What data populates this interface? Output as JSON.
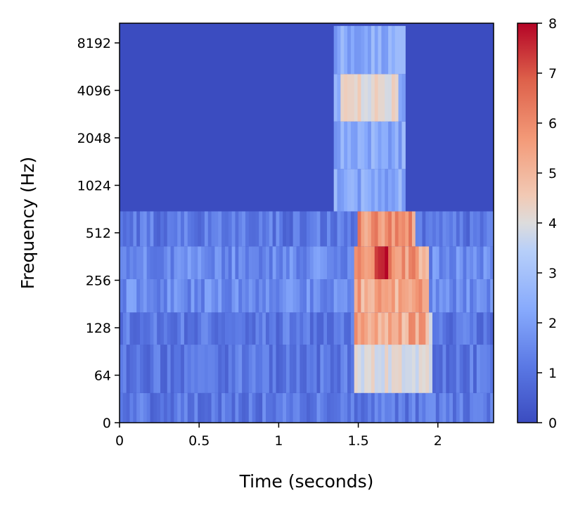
{
  "chart_data": {
    "type": "heatmap",
    "title": "",
    "xlabel": "Time (seconds)",
    "ylabel": "Frequency (Hz)",
    "xlim": [
      0,
      2.35
    ],
    "x_ticks": [
      0,
      0.5,
      1,
      1.5,
      2
    ],
    "x_tick_labels": [
      "0",
      "0.5",
      "1",
      "1.5",
      "2"
    ],
    "y_scale": "log2",
    "y_ticks": [
      0,
      64,
      128,
      256,
      512,
      1024,
      2048,
      4096,
      8192
    ],
    "y_tick_labels": [
      "0",
      "64",
      "128",
      "256",
      "512",
      "1024",
      "2048",
      "4096",
      "8192"
    ],
    "colormap": "coolwarm",
    "colorbar": {
      "min": 0,
      "max": 8,
      "ticks": [
        0,
        1,
        2,
        3,
        4,
        5,
        6,
        7,
        8
      ],
      "tick_labels": [
        "0",
        "1",
        "2",
        "3",
        "4",
        "5",
        "6",
        "7",
        "8"
      ],
      "colors": [
        "#3b4cc0",
        "#688aef",
        "#99baff",
        "#c9d8ef",
        "#edd1c2",
        "#f7a789",
        "#e36a53",
        "#b40426"
      ]
    },
    "regions": [
      {
        "t_start": 0.0,
        "t_end": 2.35,
        "f_low": 0,
        "f_high": 700,
        "level": 1.0
      },
      {
        "t_start": 0.0,
        "t_end": 2.35,
        "f_low": 250,
        "f_high": 420,
        "level": 1.4
      },
      {
        "t_start": 1.35,
        "t_end": 1.8,
        "f_low": 900,
        "f_high": 10000,
        "level": 2.0
      },
      {
        "t_start": 1.38,
        "t_end": 1.75,
        "f_low": 3000,
        "f_high": 5000,
        "level": 4.3
      },
      {
        "t_start": 1.47,
        "t_end": 1.97,
        "f_low": 64,
        "f_high": 128,
        "level": 4.0
      },
      {
        "t_start": 1.47,
        "t_end": 1.95,
        "f_low": 128,
        "f_high": 300,
        "level": 5.7
      },
      {
        "t_start": 1.5,
        "t_end": 1.85,
        "f_low": 300,
        "f_high": 560,
        "level": 6.1
      },
      {
        "t_start": 1.6,
        "t_end": 1.68,
        "f_low": 330,
        "f_high": 400,
        "level": 8.0
      },
      {
        "t_start": 1.5,
        "t_end": 1.75,
        "f_low": 560,
        "f_high": 700,
        "level": 4.6
      }
    ]
  }
}
